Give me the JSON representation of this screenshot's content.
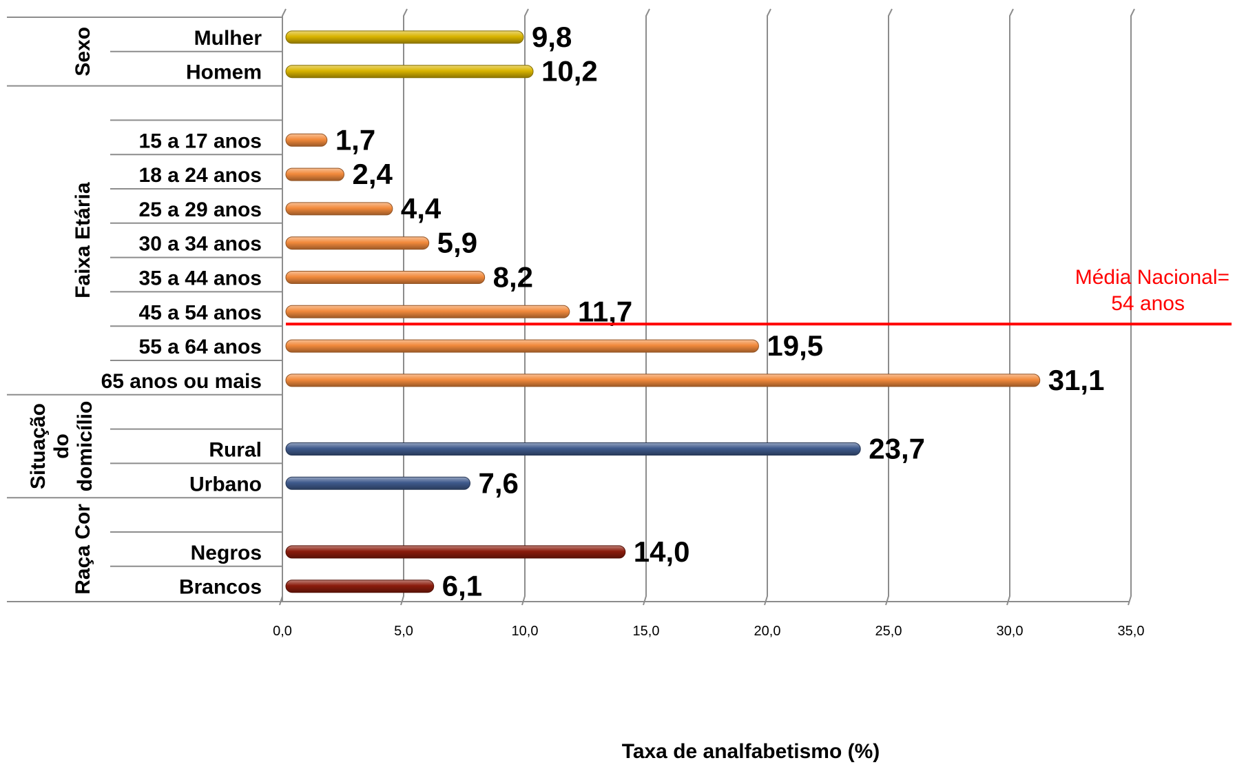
{
  "chart_data": {
    "type": "bar",
    "orientation": "horizontal",
    "xlabel": "Taxa de analfabetismo (%)",
    "xlim": [
      0,
      35
    ],
    "xticks": [
      "0,0",
      "5,0",
      "10,0",
      "15,0",
      "20,0",
      "25,0",
      "30,0",
      "35,0"
    ],
    "grid": true,
    "groups": [
      {
        "name": "Sexo",
        "name_lines": [
          "Sexo"
        ],
        "color": "#d9b400",
        "items": [
          {
            "label": "Mulher",
            "value": 9.8,
            "value_label": "9,8"
          },
          {
            "label": "Homem",
            "value": 10.2,
            "value_label": "10,2"
          }
        ]
      },
      {
        "name": "Faixa Etária",
        "name_lines": [
          "Faixa Etária"
        ],
        "color": "#f28a3c",
        "items": [
          {
            "label": "15 a 17 anos",
            "value": 1.7,
            "value_label": "1,7"
          },
          {
            "label": "18 a 24 anos",
            "value": 2.4,
            "value_label": "2,4"
          },
          {
            "label": "25 a 29 anos",
            "value": 4.4,
            "value_label": "4,4"
          },
          {
            "label": "30 a 34 anos",
            "value": 5.9,
            "value_label": "5,9"
          },
          {
            "label": "35 a 44 anos",
            "value": 8.2,
            "value_label": "8,2"
          },
          {
            "label": "45 a 54 anos",
            "value": 11.7,
            "value_label": "11,7"
          },
          {
            "label": "55 a 64 anos",
            "value": 19.5,
            "value_label": "19,5"
          },
          {
            "label": "65 anos ou mais",
            "value": 31.1,
            "value_label": "31,1"
          }
        ]
      },
      {
        "name": "Situação do domicílio",
        "name_lines": [
          "Situação",
          "do",
          "domicílio"
        ],
        "color": "#3f5a8c",
        "items": [
          {
            "label": "Rural",
            "value": 23.7,
            "value_label": "23,7"
          },
          {
            "label": "Urbano",
            "value": 7.6,
            "value_label": "7,6"
          }
        ]
      },
      {
        "name": "Raça Cor",
        "name_lines": [
          "Raça Cor"
        ],
        "color": "#8b1c0c",
        "items": [
          {
            "label": "Negros",
            "value": 14.0,
            "value_label": "14,0"
          },
          {
            "label": "Brancos",
            "value": 6.1,
            "value_label": "6,1"
          }
        ]
      }
    ],
    "reference_line": {
      "text_lines": [
        "Média Nacional=",
        "54 anos"
      ],
      "color": "#ff0000"
    }
  }
}
